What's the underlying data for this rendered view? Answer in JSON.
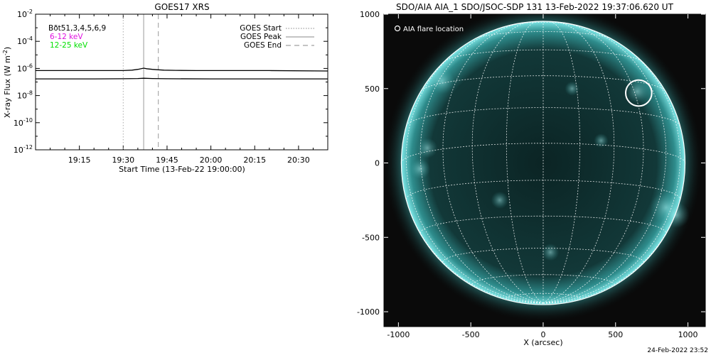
{
  "footer_timestamp": "24-Feb-2022 23:52",
  "chart_data": [
    {
      "type": "line",
      "title": "GOES17 XRS",
      "xlabel": "Start Time (13-Feb-22 19:00:00)",
      "ylabel": "X-ray Flux (W m",
      "ylabel_sup": "-2",
      "ylabel_close": ")",
      "x_ticks": [
        "19:15",
        "19:30",
        "19:45",
        "20:00",
        "20:15",
        "20:30"
      ],
      "x_tick_minutes": [
        15,
        30,
        45,
        60,
        75,
        90
      ],
      "xlim_minutes": [
        0,
        100
      ],
      "y_scale": "log",
      "ylim": [
        1e-12,
        0.01
      ],
      "y_tick_exponents": [
        -12,
        -10,
        -8,
        -6,
        -4,
        -2
      ],
      "y_tick_base": "10",
      "legend_left": [
        {
          "text": "Bðt51,3,4,5,6,9",
          "color": "#000000"
        },
        {
          "text": "6-12 keV",
          "color": "#e010e0"
        },
        {
          "text": "12-25 keV",
          "color": "#00e000"
        }
      ],
      "legend_right": [
        {
          "text": "GOES Start",
          "style": "dotted"
        },
        {
          "text": "GOES Peak",
          "style": "solid"
        },
        {
          "text": "GOES End",
          "style": "dashed"
        }
      ],
      "event_lines_minutes": {
        "start": 30,
        "peak": 37,
        "end": 42
      },
      "series": [
        {
          "color": "#000000",
          "x": [
            0,
            20,
            30,
            33,
            35,
            37,
            38,
            40,
            42,
            44,
            48,
            55,
            65,
            80,
            100
          ],
          "y": [
            7e-07,
            7e-07,
            7e-07,
            7.5e-07,
            8.5e-07,
            1.05e-06,
            9.5e-07,
            8.5e-07,
            8e-07,
            7.5e-07,
            7.2e-07,
            7e-07,
            7e-07,
            7e-07,
            6.5e-07
          ]
        },
        {
          "color": "#000000",
          "x": [
            0,
            20,
            30,
            35,
            37,
            40,
            45,
            60,
            80,
            100
          ],
          "y": [
            1.7e-07,
            1.7e-07,
            1.75e-07,
            1.8e-07,
            1.9e-07,
            1.8e-07,
            1.75e-07,
            1.7e-07,
            1.7e-07,
            1.7e-07
          ]
        }
      ]
    },
    {
      "type": "image",
      "title": "SDO/AIA AIA_1 SDO/JSOC-SDP 131 13-Feb-2022 19:37:06.620 UT",
      "xlabel": "X (arcsec)",
      "x_ticks": [
        "-1000",
        "-500",
        "0",
        "500",
        "1000"
      ],
      "x_tick_values": [
        -1000,
        -500,
        0,
        500,
        1000
      ],
      "y_ticks": [
        "-1000",
        "-500",
        "0",
        "500",
        "1000"
      ],
      "y_tick_values": [
        -1000,
        -500,
        0,
        500,
        1000
      ],
      "xlim": [
        -1100,
        1120
      ],
      "ylim": [
        -1100,
        1000
      ],
      "solar_radius_arcsec": 980,
      "legend": "AIA flare location",
      "flare_location": {
        "x": 660,
        "y": 470,
        "radius": 90
      },
      "colors": {
        "disk": "#0d2a2a",
        "limb": "#6fe0e0",
        "grid": "#ffffff",
        "bright": "#9ff5f5"
      }
    }
  ]
}
